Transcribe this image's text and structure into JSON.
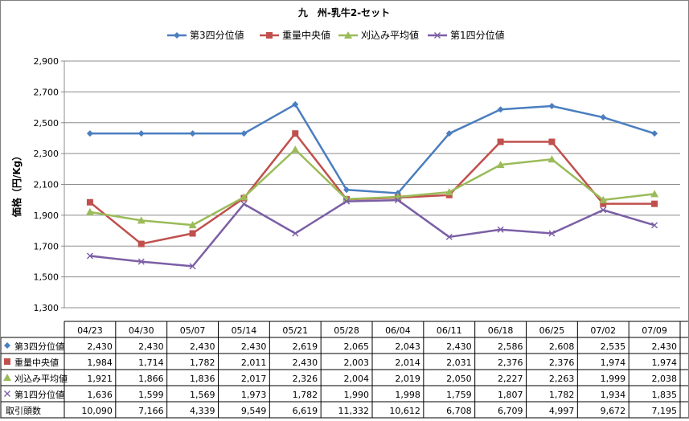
{
  "chart_data": {
    "type": "line",
    "title": "九　州-乳牛2-セット",
    "ylabel": "価格（円/Kg）",
    "xlabel": "",
    "ylim": [
      1300,
      2900
    ],
    "yticks": [
      "1,300",
      "1,500",
      "1,700",
      "1,900",
      "2,100",
      "2,300",
      "2,500",
      "2,700",
      "2,900"
    ],
    "grid": true,
    "legend": "top",
    "categories": [
      "04/23",
      "04/30",
      "05/07",
      "05/14",
      "05/21",
      "05/28",
      "06/04",
      "06/11",
      "06/18",
      "06/25",
      "07/02",
      "07/09"
    ],
    "series": [
      {
        "name": "第3四分位値",
        "color": "#4a7ebf",
        "marker": "diamond",
        "values": [
          2430,
          2430,
          2430,
          2430,
          2619,
          2065,
          2043,
          2430,
          2586,
          2608,
          2535,
          2430
        ],
        "labels": [
          "2,430",
          "2,430",
          "2,430",
          "2,430",
          "2,619",
          "2,065",
          "2,043",
          "2,430",
          "2,586",
          "2,608",
          "2,535",
          "2,430"
        ]
      },
      {
        "name": "重量中央値",
        "color": "#c0504d",
        "marker": "square",
        "values": [
          1984,
          1714,
          1782,
          2011,
          2430,
          2003,
          2014,
          2031,
          2376,
          2376,
          1974,
          1974
        ],
        "labels": [
          "1,984",
          "1,714",
          "1,782",
          "2,011",
          "2,430",
          "2,003",
          "2,014",
          "2,031",
          "2,376",
          "2,376",
          "1,974",
          "1,974"
        ]
      },
      {
        "name": "刈込み平均値",
        "color": "#9bbb59",
        "marker": "triangle",
        "values": [
          1921,
          1866,
          1836,
          2017,
          2326,
          2004,
          2019,
          2050,
          2227,
          2263,
          1999,
          2038
        ],
        "labels": [
          "1,921",
          "1,866",
          "1,836",
          "2,017",
          "2,326",
          "2,004",
          "2,019",
          "2,050",
          "2,227",
          "2,263",
          "1,999",
          "2,038"
        ]
      },
      {
        "name": "第1四分位値",
        "color": "#7b5fa5",
        "marker": "x",
        "values": [
          1636,
          1599,
          1569,
          1973,
          1782,
          1990,
          1998,
          1759,
          1807,
          1782,
          1934,
          1835
        ],
        "labels": [
          "1,636",
          "1,599",
          "1,569",
          "1,973",
          "1,782",
          "1,990",
          "1,998",
          "1,759",
          "1,807",
          "1,782",
          "1,934",
          "1,835"
        ]
      }
    ],
    "table_extra_row": {
      "name": "取引頭数",
      "values": [
        10090,
        7166,
        4339,
        9549,
        6619,
        11332,
        10612,
        6708,
        6709,
        4997,
        9672,
        7195
      ],
      "labels": [
        "10,090",
        "7,166",
        "4,339",
        "9,549",
        "6,619",
        "11,332",
        "10,612",
        "6,708",
        "6,709",
        "4,997",
        "9,672",
        "7,195"
      ]
    }
  }
}
